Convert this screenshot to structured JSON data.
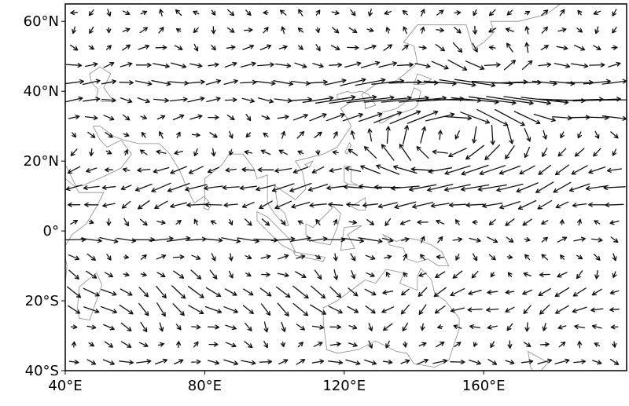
{
  "chart_data": {
    "type": "quiver",
    "title": "",
    "xlabel": "",
    "ylabel": "",
    "xlim": [
      40,
      201
    ],
    "ylim": [
      -40,
      65
    ],
    "x_ticks": [
      {
        "value": 40,
        "label": "40°E"
      },
      {
        "value": 80,
        "label": "80°E"
      },
      {
        "value": 120,
        "label": "120°E"
      },
      {
        "value": 160,
        "label": "160°E"
      }
    ],
    "y_ticks": [
      {
        "value": 60,
        "label": "60°N"
      },
      {
        "value": 40,
        "label": "40°N"
      },
      {
        "value": 20,
        "label": "20°N"
      },
      {
        "value": 0,
        "label": "0°"
      },
      {
        "value": -20,
        "label": "20°S"
      },
      {
        "value": -40,
        "label": "40°S"
      }
    ],
    "grid": false,
    "features": {
      "coastlines": true,
      "anticyclone_center": [
        150,
        28
      ],
      "cyclone_center": [
        163,
        46
      ],
      "jet_latitude": 37
    },
    "colors": {
      "vectors": "#111111",
      "coastline": "#8a8a8a",
      "frame": "#000000"
    }
  }
}
